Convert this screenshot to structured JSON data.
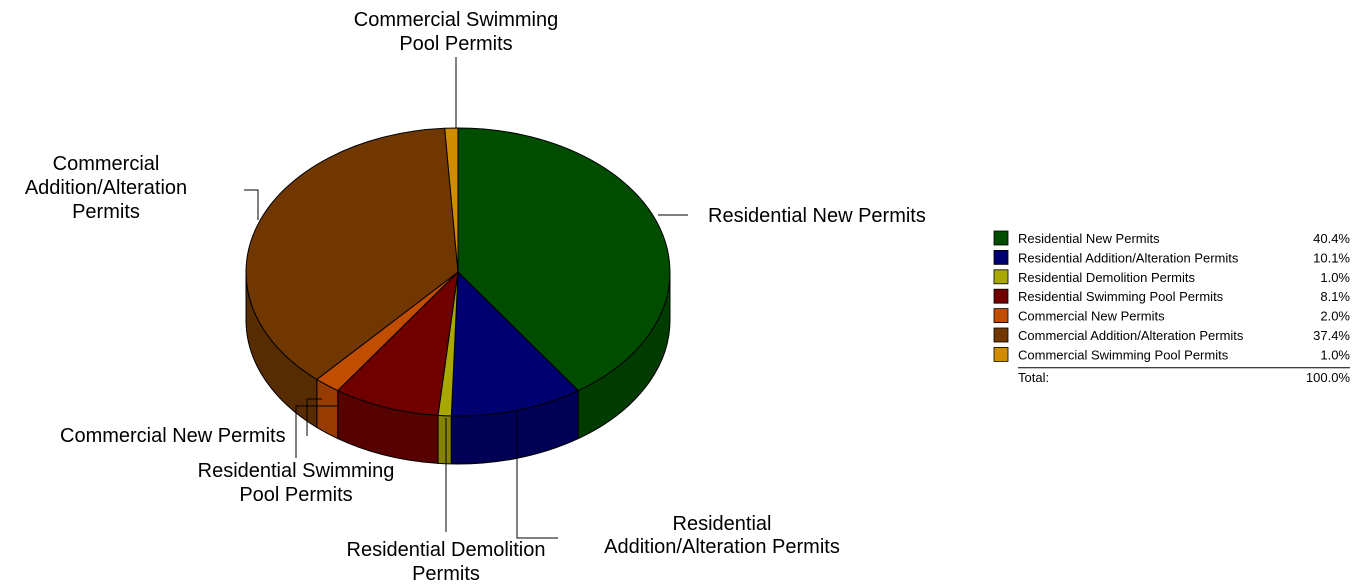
{
  "chart_data": {
    "type": "pie",
    "style": "3d",
    "title": "",
    "slices": [
      {
        "label": "Residential New Permits",
        "value": 40.4,
        "percent_label": "40.4%",
        "color": "#004D00",
        "callout": [
          "Residential New Permits"
        ]
      },
      {
        "label": "Residential Addition/Alteration Permits",
        "value": 10.1,
        "percent_label": "10.1%",
        "color": "#000070",
        "callout": [
          "Residential",
          "Addition/Alteration Permits"
        ]
      },
      {
        "label": "Residential Demolition Permits",
        "value": 1.0,
        "percent_label": "1.0%",
        "color": "#A8A800",
        "callout": [
          "Residential Demolition",
          "Permits"
        ]
      },
      {
        "label": "Residential Swimming Pool Permits",
        "value": 8.1,
        "percent_label": "8.1%",
        "color": "#700000",
        "callout": [
          "Residential Swimming",
          "Pool Permits"
        ]
      },
      {
        "label": "Commercial New Permits",
        "value": 2.0,
        "percent_label": "2.0%",
        "color": "#C04D00",
        "callout": [
          "Commercial New Permits"
        ]
      },
      {
        "label": "Commercial Addition/Alteration Permits",
        "value": 37.4,
        "percent_label": "37.4%",
        "color": "#703800",
        "callout": [
          "Commercial",
          "Addition/Alteration",
          "Permits"
        ]
      },
      {
        "label": "Commercial Swimming Pool Permits",
        "value": 1.0,
        "percent_label": "1.0%",
        "color": "#D08C00",
        "callout": [
          "Commercial Swimming",
          "Pool Permits"
        ]
      }
    ],
    "legend": {
      "placement": "right",
      "total_label": "Total:",
      "total_value": "100.0%"
    }
  }
}
